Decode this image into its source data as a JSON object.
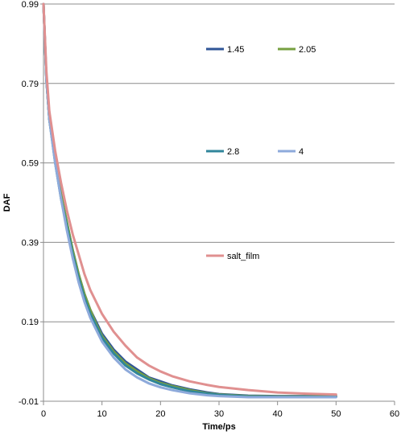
{
  "chart_data": {
    "type": "line",
    "xlabel": "Time/ps",
    "ylabel": "DAF",
    "xlim": [
      0,
      60
    ],
    "ylim": [
      -0.01,
      0.99
    ],
    "x_ticks": [
      "0",
      "10",
      "20",
      "30",
      "40",
      "50",
      "60"
    ],
    "y_ticks": [
      "-0.01",
      "0.19",
      "0.39",
      "0.59",
      "0.79",
      "0.99"
    ],
    "grid": "horizontal",
    "legend": "inside plot area, three rows",
    "x": [
      0,
      0.5,
      1,
      2,
      3,
      4,
      5,
      6,
      7,
      8,
      9,
      10,
      12,
      14,
      16,
      18,
      20,
      22,
      25,
      28,
      30,
      35,
      40,
      45,
      50
    ],
    "series": [
      {
        "name": "1.45",
        "color": "#2f5597",
        "values": [
          0.99,
          0.8,
          0.7,
          0.6,
          0.51,
          0.44,
          0.37,
          0.31,
          0.26,
          0.22,
          0.19,
          0.16,
          0.12,
          0.09,
          0.07,
          0.05,
          0.04,
          0.03,
          0.02,
          0.012,
          0.008,
          0.004,
          0.003,
          0.003,
          0.003
        ]
      },
      {
        "name": "2.05",
        "color": "#77a040",
        "values": [
          0.99,
          0.8,
          0.7,
          0.6,
          0.51,
          0.44,
          0.37,
          0.31,
          0.26,
          0.22,
          0.185,
          0.155,
          0.115,
          0.085,
          0.065,
          0.048,
          0.036,
          0.028,
          0.018,
          0.01,
          0.007,
          0.003,
          0.002,
          0.002,
          0.002
        ]
      },
      {
        "name": "2.8",
        "color": "#31869b",
        "values": [
          0.99,
          0.8,
          0.7,
          0.59,
          0.5,
          0.43,
          0.36,
          0.3,
          0.25,
          0.21,
          0.18,
          0.15,
          0.11,
          0.08,
          0.06,
          0.045,
          0.033,
          0.025,
          0.015,
          0.009,
          0.006,
          0.002,
          0.001,
          0.001,
          0.001
        ]
      },
      {
        "name": "4",
        "color": "#8eaadb",
        "values": [
          0.99,
          0.8,
          0.7,
          0.59,
          0.5,
          0.42,
          0.35,
          0.29,
          0.24,
          0.2,
          0.17,
          0.14,
          0.1,
          0.07,
          0.05,
          0.035,
          0.025,
          0.018,
          0.01,
          0.005,
          0.003,
          0.0,
          0.0,
          0.0,
          0.0
        ]
      },
      {
        "name": "salt_film",
        "color": "#e09090",
        "values": [
          0.99,
          0.82,
          0.72,
          0.62,
          0.54,
          0.47,
          0.41,
          0.36,
          0.31,
          0.27,
          0.24,
          0.21,
          0.165,
          0.13,
          0.1,
          0.08,
          0.065,
          0.053,
          0.04,
          0.031,
          0.026,
          0.018,
          0.012,
          0.009,
          0.007
        ]
      }
    ]
  }
}
